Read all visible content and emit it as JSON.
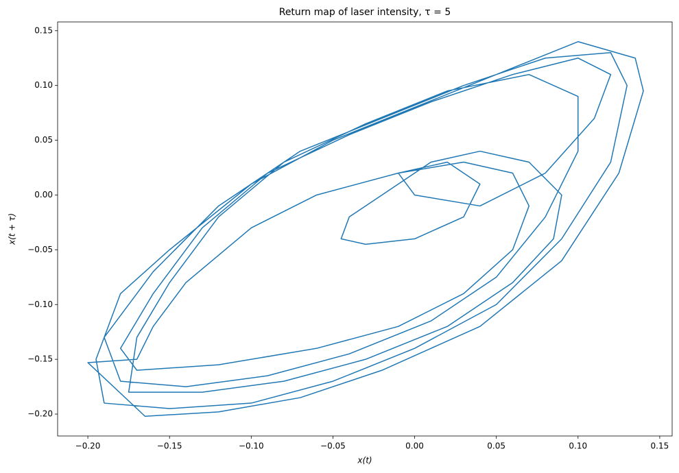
{
  "chart_data": {
    "type": "line",
    "title": "Return map of laser intensity, τ = 5",
    "x_label": "x(t)",
    "y_label": "x(t + τ)",
    "xlim": [
      -0.2185,
      0.1576
    ],
    "ylim": [
      -0.22,
      0.158
    ],
    "xticks": [
      {
        "value": -0.2,
        "label": "−0.20"
      },
      {
        "value": -0.15,
        "label": "−0.15"
      },
      {
        "value": -0.1,
        "label": "−0.10"
      },
      {
        "value": -0.05,
        "label": "−0.05"
      },
      {
        "value": 0,
        "label": "0.00"
      },
      {
        "value": 0.05,
        "label": "0.05"
      },
      {
        "value": 0.1,
        "label": "0.10"
      },
      {
        "value": 0.15,
        "label": "0.15"
      }
    ],
    "yticks": [
      {
        "value": -0.2,
        "label": "−0.20"
      },
      {
        "value": -0.15,
        "label": "−0.15"
      },
      {
        "value": -0.1,
        "label": "−0.10"
      },
      {
        "value": -0.05,
        "label": "−0.05"
      },
      {
        "value": 0,
        "label": "0.00"
      },
      {
        "value": 0.05,
        "label": "0.05"
      },
      {
        "value": 0.1,
        "label": "0.10"
      },
      {
        "value": 0.15,
        "label": "0.15"
      }
    ],
    "x": [
      -0.19,
      -0.15,
      -0.1,
      -0.05,
      0.0,
      0.05,
      0.09,
      0.12,
      0.13,
      0.12,
      0.08,
      0.03,
      -0.02,
      -0.07,
      -0.12,
      -0.16,
      -0.19,
      -0.18,
      -0.14,
      -0.09,
      -0.04,
      0.01,
      0.05,
      0.08,
      0.1,
      0.1,
      0.07,
      0.02,
      -0.03,
      -0.08,
      -0.12,
      -0.15,
      -0.17,
      -0.175,
      -0.13,
      -0.08,
      -0.03,
      0.02,
      0.06,
      0.085,
      0.09,
      0.07,
      0.04,
      0.01,
      -0.02,
      -0.04,
      -0.045,
      -0.03,
      0.0,
      0.03,
      0.04,
      0.02,
      -0.01,
      0.0,
      0.04,
      0.08,
      0.11,
      0.12,
      0.1,
      0.06,
      0.01,
      -0.04,
      -0.09,
      -0.13,
      -0.16,
      -0.18,
      -0.17,
      -0.12,
      -0.06,
      -0.01,
      0.03,
      0.06,
      0.07,
      0.06,
      0.03,
      -0.01,
      -0.06,
      -0.1,
      -0.14,
      -0.16,
      -0.17,
      -0.2,
      -0.165,
      -0.12,
      -0.07,
      -0.02,
      0.04,
      0.09,
      0.125,
      0.14,
      0.135,
      0.1,
      0.05,
      0.0,
      -0.05,
      -0.1,
      -0.15,
      -0.18,
      -0.195,
      -0.19
    ],
    "series": [
      {
        "color": "#1f77b4",
        "values": [
          -0.19,
          -0.195,
          -0.19,
          -0.17,
          -0.14,
          -0.1,
          -0.04,
          0.03,
          0.1,
          0.13,
          0.125,
          0.1,
          0.07,
          0.04,
          -0.01,
          -0.07,
          -0.13,
          -0.17,
          -0.175,
          -0.165,
          -0.145,
          -0.115,
          -0.075,
          -0.02,
          0.04,
          0.09,
          0.11,
          0.095,
          0.065,
          0.03,
          -0.02,
          -0.08,
          -0.13,
          -0.18,
          -0.18,
          -0.17,
          -0.15,
          -0.12,
          -0.08,
          -0.04,
          0.0,
          0.03,
          0.04,
          0.03,
          0.0,
          -0.02,
          -0.04,
          -0.045,
          -0.04,
          -0.02,
          0.01,
          0.03,
          0.02,
          0.0,
          -0.01,
          0.02,
          0.07,
          0.11,
          0.125,
          0.11,
          0.085,
          0.055,
          0.02,
          -0.03,
          -0.09,
          -0.14,
          -0.16,
          -0.155,
          -0.14,
          -0.12,
          -0.09,
          -0.05,
          -0.01,
          0.02,
          0.03,
          0.02,
          0.0,
          -0.03,
          -0.08,
          -0.12,
          -0.15,
          -0.153,
          -0.202,
          -0.198,
          -0.185,
          -0.16,
          -0.12,
          -0.06,
          0.02,
          0.095,
          0.125,
          0.14,
          0.11,
          0.08,
          0.05,
          0.01,
          -0.05,
          -0.09,
          -0.15,
          -0.19
        ]
      }
    ]
  }
}
